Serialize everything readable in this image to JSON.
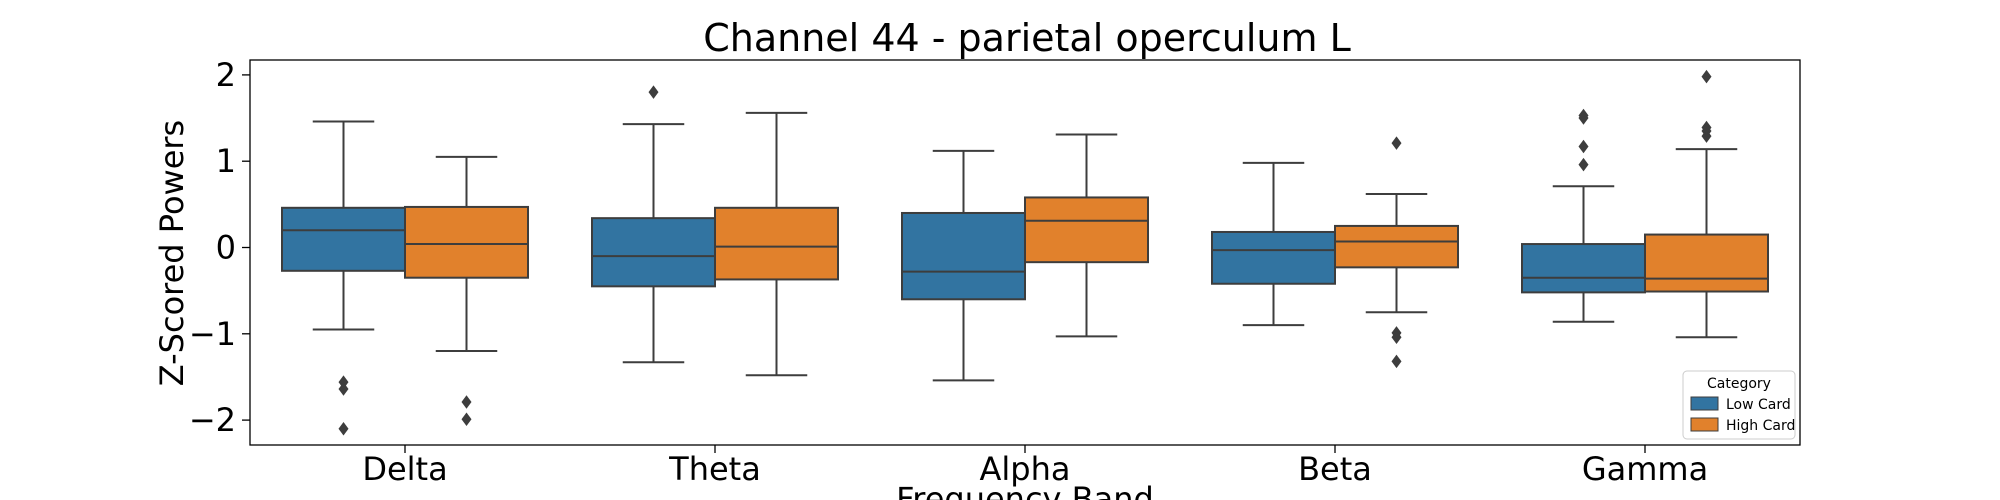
{
  "chart_data": {
    "type": "box",
    "title": "Channel 44 - parietal operculum L",
    "xlabel": "Frequency Band",
    "ylabel": "Z-Scored Powers",
    "ylim": [
      -2.3,
      2.2
    ],
    "yticks": [
      2,
      1,
      0,
      -1,
      -2
    ],
    "ytick_labels": [
      "2",
      "1",
      "0",
      "−1",
      "−2"
    ],
    "categories": [
      "Delta",
      "Theta",
      "Alpha",
      "Beta",
      "Gamma"
    ],
    "legend": {
      "title": "Category",
      "placement": "lower-right"
    },
    "grid": false,
    "series": [
      {
        "name": "Low Card",
        "color": "#3274a1",
        "boxes": [
          {
            "whislo": -0.95,
            "q1": -0.27,
            "med": 0.2,
            "q3": 0.46,
            "whishi": 1.46,
            "fliers": [
              -1.56,
              -1.64,
              -2.1
            ]
          },
          {
            "whislo": -1.33,
            "q1": -0.45,
            "med": -0.1,
            "q3": 0.34,
            "whishi": 1.43,
            "fliers": [
              1.8
            ]
          },
          {
            "whislo": -1.54,
            "q1": -0.6,
            "med": -0.28,
            "q3": 0.4,
            "whishi": 1.12,
            "fliers": []
          },
          {
            "whislo": -0.9,
            "q1": -0.42,
            "med": -0.03,
            "q3": 0.18,
            "whishi": 0.98,
            "fliers": []
          },
          {
            "whislo": -0.86,
            "q1": -0.52,
            "med": -0.35,
            "q3": 0.04,
            "whishi": 0.71,
            "fliers": [
              0.96,
              1.17,
              1.5,
              1.53
            ]
          }
        ]
      },
      {
        "name": "High Card",
        "color": "#e1812c",
        "boxes": [
          {
            "whislo": -1.2,
            "q1": -0.35,
            "med": 0.04,
            "q3": 0.47,
            "whishi": 1.05,
            "fliers": [
              -1.79,
              -1.99
            ]
          },
          {
            "whislo": -1.48,
            "q1": -0.37,
            "med": 0.01,
            "q3": 0.46,
            "whishi": 1.56,
            "fliers": []
          },
          {
            "whislo": -1.03,
            "q1": -0.17,
            "med": 0.31,
            "q3": 0.58,
            "whishi": 1.31,
            "fliers": []
          },
          {
            "whislo": -0.75,
            "q1": -0.23,
            "med": 0.07,
            "q3": 0.25,
            "whishi": 0.62,
            "fliers": [
              1.21,
              -0.99,
              -1.04,
              -1.32
            ]
          },
          {
            "whislo": -1.04,
            "q1": -0.51,
            "med": -0.36,
            "q3": 0.15,
            "whishi": 1.14,
            "fliers": [
              1.29,
              1.35,
              1.39,
              1.98
            ]
          }
        ]
      }
    ]
  }
}
